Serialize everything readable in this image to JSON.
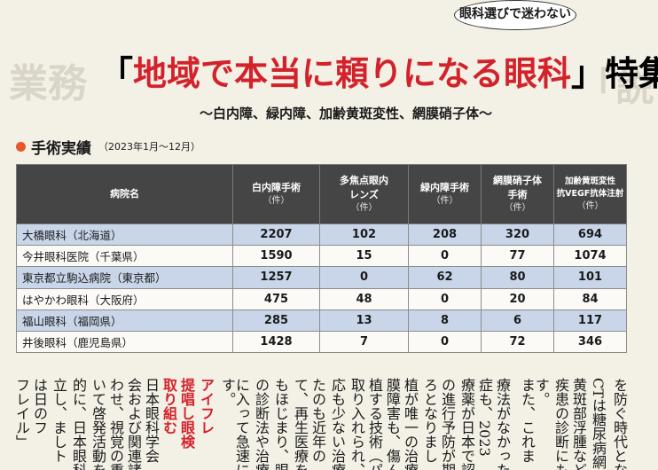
{
  "badge": "眼科選びで迷わない",
  "title": {
    "bracket_open": "「",
    "main": "地域で本当に頼りになる眼科",
    "bracket_close": "」",
    "suffix": "特集"
  },
  "subtitle": "〜白内障、緑内障、加齢黄斑変性、網膜硝子体〜",
  "section": {
    "heading": "手術実績",
    "period": "（2023年1月〜12月）"
  },
  "table": {
    "headers": [
      {
        "label": "病院名",
        "unit": ""
      },
      {
        "label": "白内障手術",
        "unit": "（件）"
      },
      {
        "label": "多焦点眼内\nレンズ",
        "unit": "（件）"
      },
      {
        "label": "緑内障手術",
        "unit": "（件）"
      },
      {
        "label": "網膜硝子体\n手術",
        "unit": "（件）"
      },
      {
        "label": "加齢黄斑変性\n抗VEGF抗体注射",
        "unit": "（件）"
      }
    ],
    "rows": [
      [
        "大橋眼科（北海道）",
        "2207",
        "102",
        "208",
        "320",
        "694"
      ],
      [
        "今井眼科医院（千葉県）",
        "1590",
        "15",
        "0",
        "77",
        "1074"
      ],
      [
        "東京都立駒込病院（東京都）",
        "1257",
        "0",
        "62",
        "80",
        "101"
      ],
      [
        "はやかわ眼科（大阪府）",
        "475",
        "48",
        "0",
        "20",
        "84"
      ],
      [
        "福山眼科（福岡県）",
        "285",
        "13",
        "8",
        "6",
        "117"
      ],
      [
        "井後眼科（鹿児島県）",
        "1428",
        "7",
        "0",
        "72",
        "346"
      ]
    ]
  },
  "colors": {
    "accent_red": "#d3222b",
    "header_bg": "#454545",
    "row_blue": "#c9d6ea",
    "dot_orange": "#e8572a"
  },
  "article_columns": [
    "フレイル」",
    "は日のフ",
    "立し、ましト",
    "的に、日本眼科",
    "いて啓発活動を",
    "わせ、視覚の重",
    "会および関連諸",
    "日本眼科学会",
    "取り組む",
    "提唱し眼検",
    "アイフレ",
    "す。",
    "に入って急速に",
    "の診断法や治療",
    "もほじまり、眼",
    "て、再生医療を",
    "たのも近年の",
    "応も少ない治療",
    "取り入れられ、",
    "植する技術（パ",
    "膜障害も、傷ん",
    "植が唯一の治療",
    "ろとなりまし",
    "の進行予防が期",
    "療薬が日本で認",
    "症も、2023",
    "療法がなかった",
    "また、これま",
    "す。",
    "疾患の診断にも",
    "黄斑部浮腫など",
    "CTは糖尿病網",
    "を防ぐ時代とな"
  ]
}
